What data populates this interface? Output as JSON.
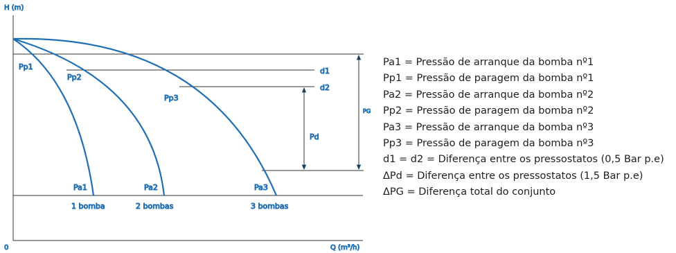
{
  "axes": {
    "y_label": "H (m)",
    "origin_label": "0",
    "x_label": "Q (m³/h)"
  },
  "curve_labels": {
    "pp1": "Pp1",
    "pp2": "Pp2",
    "pp3": "Pp3",
    "pa1": "Pa1",
    "pa2": "Pa2",
    "pa3": "Pa3"
  },
  "pump_labels": [
    "1 bomba",
    "2 bombas",
    "3 bombas"
  ],
  "level_labels": {
    "d1": "d1",
    "d2": "d2",
    "pd": "Pd",
    "pg": "PG"
  },
  "legend": [
    "Pa1 = Pressão de arranque da bomba nº1",
    "Pp1 = Pressão de paragem da bomba nº1",
    "Pa2 = Pressão de arranque da bomba nº2",
    "Pp2 = Pressão de paragem da bomba nº2",
    "Pa3 = Pressão de arranque da bomba nº3",
    "Pp3 = Pressão de paragem da bomba nº3",
    "d1 = d2 = Diferença entre os pressostatos (0,5 Bar p.e)",
    "ΔPd = Diferença entre os pressostatos (1,5 Bar p.e)",
    "ΔPG = Diferença total do conjunto"
  ],
  "colors": {
    "curve": "#1f6fb5",
    "line": "#333333"
  }
}
